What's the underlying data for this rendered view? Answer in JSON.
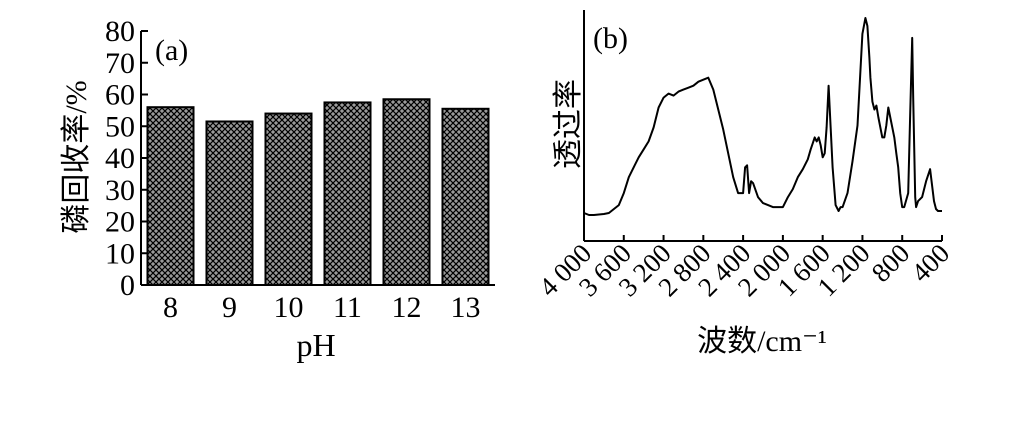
{
  "chart_data": [
    {
      "type": "bar",
      "panel_label": "(a)",
      "categories": [
        "8",
        "9",
        "10",
        "11",
        "12",
        "13"
      ],
      "values": [
        56,
        51.5,
        54,
        57.5,
        58.5,
        55.5
      ],
      "xlabel": "pH",
      "ylabel": "磷回收率/%",
      "ylim": [
        0,
        80
      ],
      "yticks": [
        "0",
        "10",
        "20",
        "30",
        "40",
        "50",
        "60",
        "70",
        "80"
      ],
      "grid": false,
      "legend": "none",
      "bar_fill": "crosshatch",
      "colors": {
        "bar_base": "#9a9a9a",
        "hatch": "#000000"
      }
    },
    {
      "type": "line",
      "panel_label": "(b)",
      "xlabel": "波数/cm⁻¹",
      "ylabel": "透过率",
      "xlim": [
        4000,
        400
      ],
      "xaxis_reversed": true,
      "xticks": [
        "4 000",
        "3 600",
        "3 200",
        "2 800",
        "2 400",
        "2 000",
        "1 600",
        "1 200",
        "800",
        "400"
      ],
      "yaxis_ticks": "none",
      "ylim": [
        0,
        100
      ],
      "grid": false,
      "legend": "none",
      "series": [
        {
          "x": [
            4000,
            3950,
            3900,
            3800,
            3750,
            3650,
            3600,
            3550,
            3500,
            3450,
            3400,
            3350,
            3300,
            3250,
            3200,
            3150,
            3100,
            3050,
            3000,
            2950,
            2900,
            2850,
            2800,
            2750,
            2700,
            2600,
            2500,
            2450,
            2400,
            2380,
            2360,
            2340,
            2320,
            2300,
            2250,
            2200,
            2150,
            2100,
            2050,
            2000,
            1950,
            1900,
            1850,
            1800,
            1750,
            1720,
            1700,
            1680,
            1660,
            1640,
            1620,
            1600,
            1580,
            1560,
            1540,
            1500,
            1470,
            1440,
            1420,
            1400,
            1350,
            1300,
            1250,
            1200,
            1170,
            1150,
            1130,
            1120,
            1100,
            1080,
            1060,
            1040,
            1000,
            980,
            960,
            940,
            920,
            880,
            860,
            840,
            820,
            800,
            780,
            740,
            720,
            700,
            690,
            680,
            670,
            660,
            640,
            600,
            560,
            520,
            480,
            460,
            440,
            420,
            400
          ],
          "y": [
            2,
            1,
            1,
            1.5,
            2,
            6,
            12,
            20,
            25,
            30,
            34,
            38,
            45,
            55,
            60,
            62,
            61,
            63,
            64,
            65,
            66,
            68,
            69,
            70,
            64,
            44,
            20,
            12,
            12,
            25,
            26,
            12,
            18,
            17,
            10,
            7,
            6,
            5,
            5,
            5,
            10,
            14,
            20,
            24,
            29,
            34,
            37,
            40,
            38,
            40,
            36,
            30,
            32,
            45,
            66,
            25,
            6,
            3,
            5,
            5,
            12,
            28,
            46,
            92,
            100,
            96,
            80,
            70,
            58,
            54,
            56,
            50,
            40,
            40,
            46,
            55,
            50,
            40,
            32,
            25,
            12,
            5,
            5,
            12,
            52,
            90,
            60,
            35,
            10,
            5,
            8,
            10,
            18,
            24,
            8,
            4,
            3,
            3,
            3
          ]
        }
      ]
    }
  ],
  "colors": {
    "axis": "#000000",
    "line": "#000000",
    "background": "#ffffff"
  }
}
